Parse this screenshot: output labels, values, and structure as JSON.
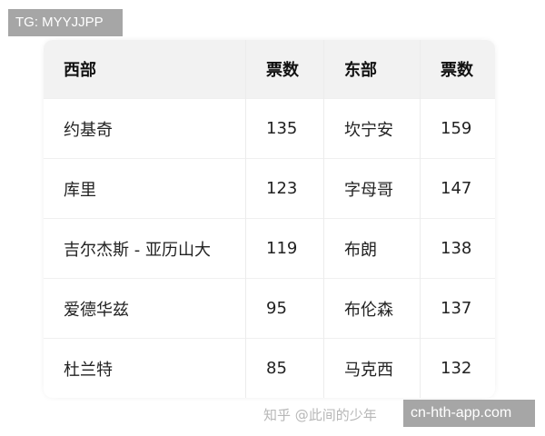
{
  "watermark_top": "TG: MYYJJPP",
  "watermark_bottom": "cn-hth-app.com",
  "watermark_zhihu": "知乎 @此间的少年",
  "table": {
    "headers": [
      "西部",
      "票数",
      "东部",
      "票数"
    ],
    "rows": [
      [
        "约基奇",
        "135",
        "坎宁安",
        "159"
      ],
      [
        "库里",
        "123",
        "字母哥",
        "147"
      ],
      [
        "吉尔杰斯 - 亚历山大",
        "119",
        "布朗",
        "138"
      ],
      [
        "爱德华兹",
        "95",
        "布伦森",
        "137"
      ],
      [
        "杜兰特",
        "85",
        "马克西",
        "132"
      ]
    ]
  }
}
